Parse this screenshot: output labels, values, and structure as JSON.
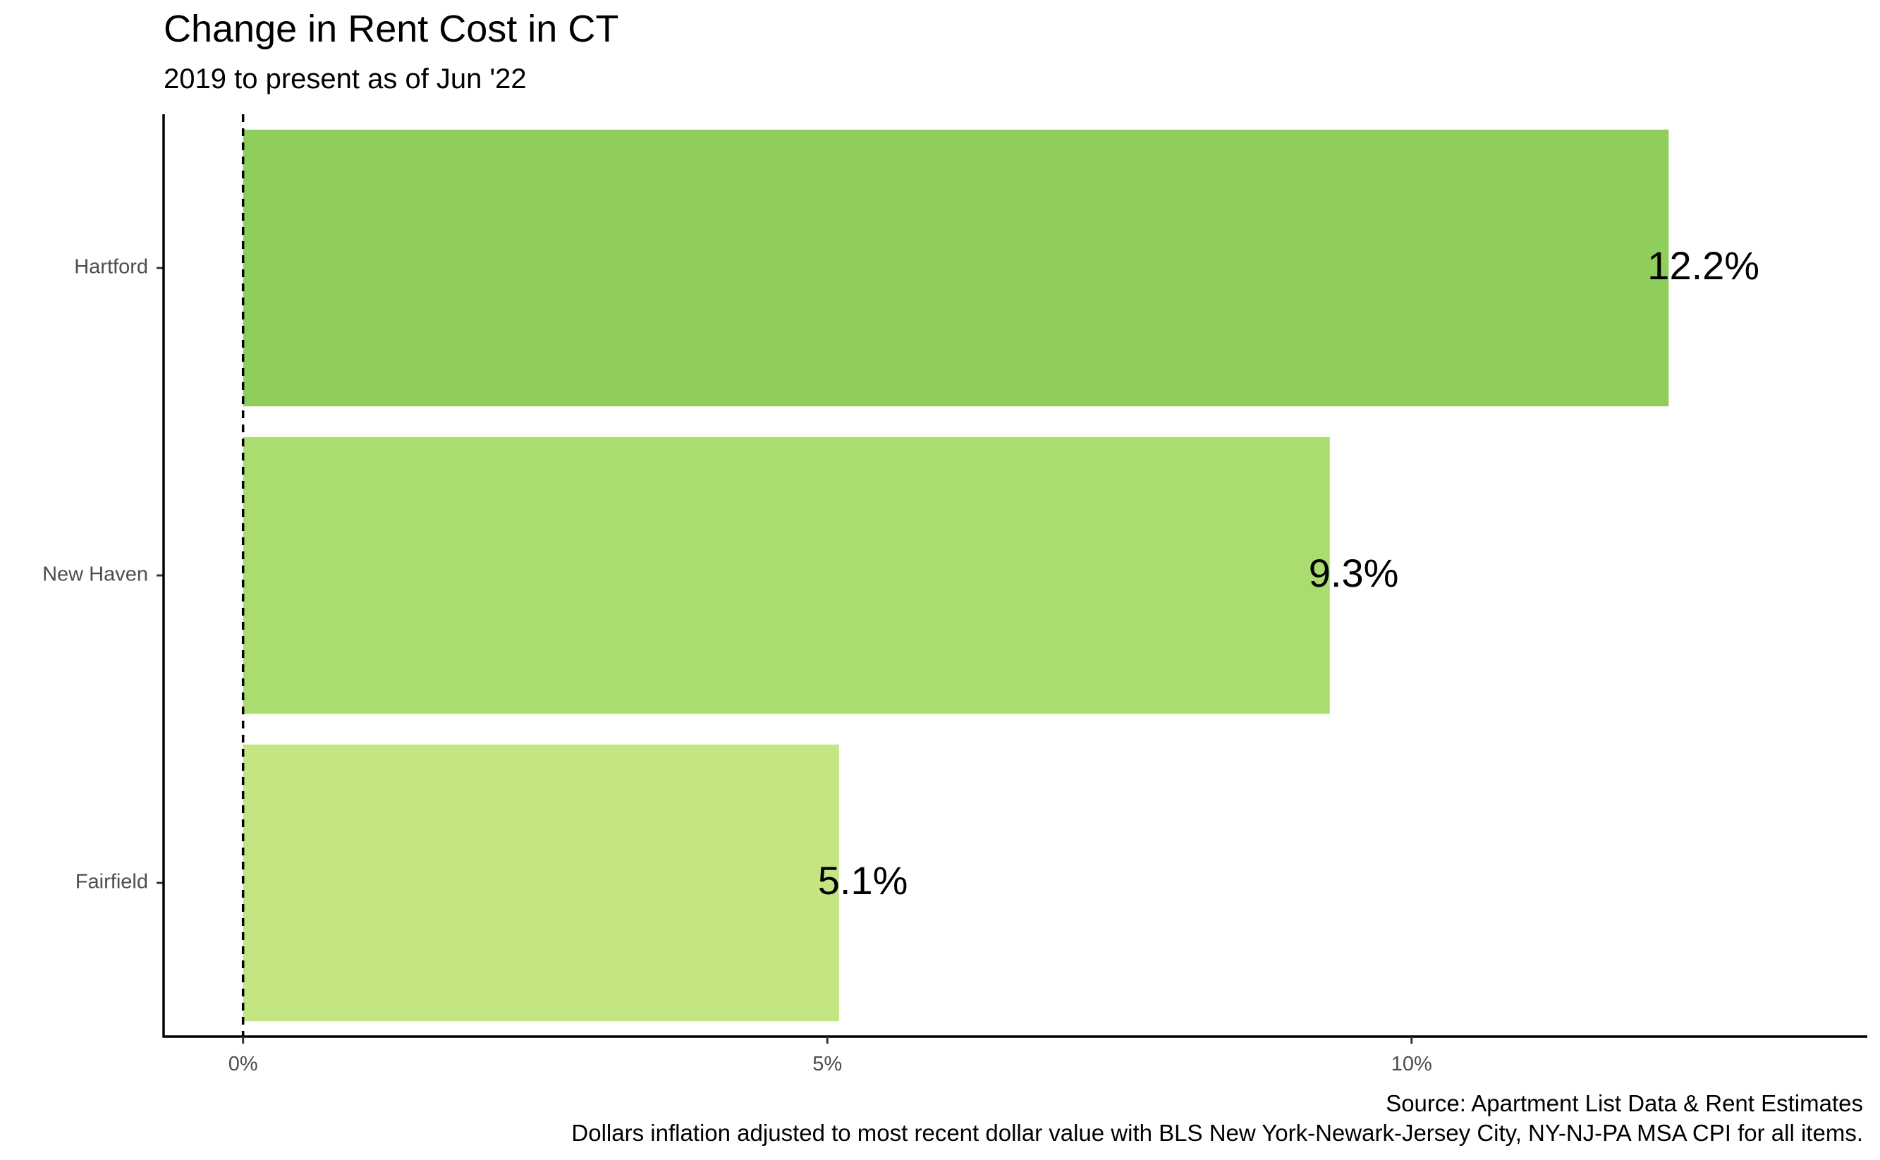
{
  "chart_data": {
    "type": "bar",
    "orientation": "horizontal",
    "title": "Change in Rent Cost in CT",
    "subtitle": "2019 to present as of Jun '22",
    "categories": [
      "Hartford",
      "New Haven",
      "Fairfield"
    ],
    "values": [
      12.2,
      9.3,
      5.1
    ],
    "data_labels": [
      "12.2%",
      "9.3%",
      "5.1%"
    ],
    "colors": [
      "#8fce5c",
      "#abdc6f",
      "#c3e683"
    ],
    "xlabel": "",
    "ylabel": "",
    "xlim": [
      -0.68,
      13.9
    ],
    "xticks": [
      {
        "value": 0,
        "label": "0%"
      },
      {
        "value": 5,
        "label": "5%"
      },
      {
        "value": 10,
        "label": "10%"
      }
    ],
    "reference_line": {
      "value": 0,
      "style": "dashed"
    },
    "grid": false,
    "legend": "none",
    "caption": [
      "Source: Apartment List Data & Rent Estimates",
      "Dollars inflation adjusted to most recent dollar value with BLS New York-Newark-Jersey City, NY-NJ-PA MSA CPI for all items."
    ]
  }
}
